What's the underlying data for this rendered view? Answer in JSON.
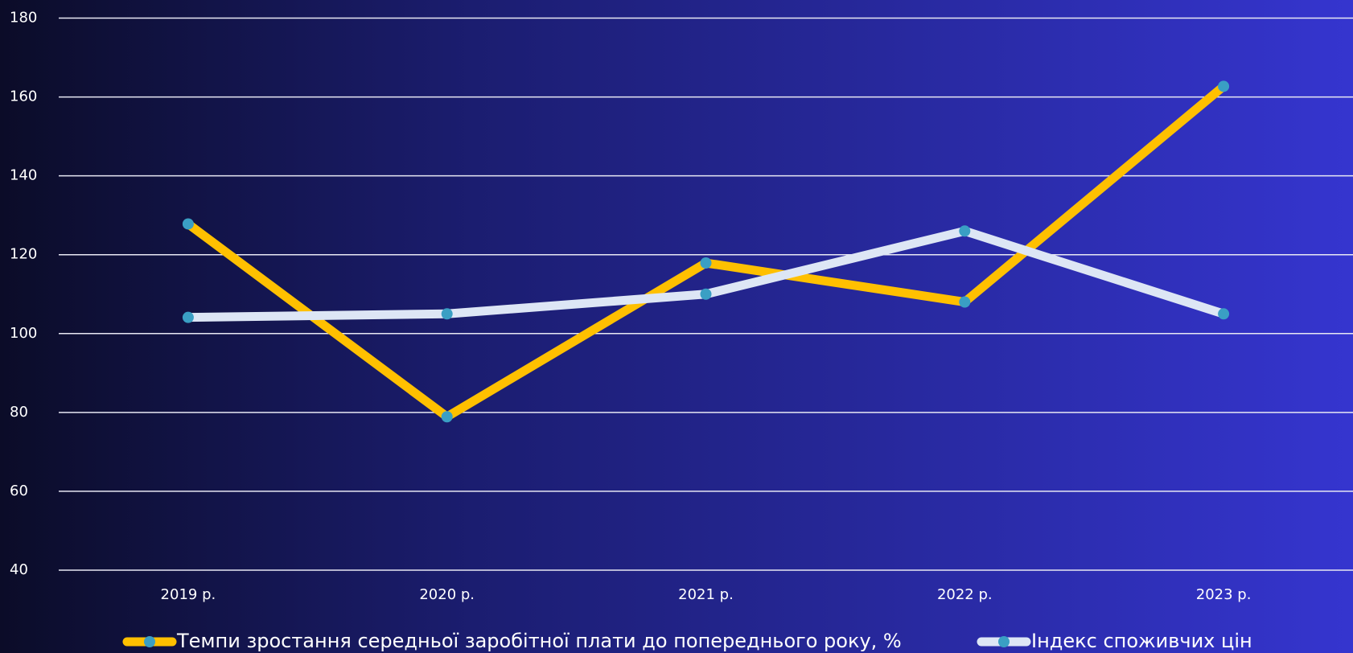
{
  "chart_data": {
    "type": "line",
    "categories": [
      "2019 р.",
      "2020 р.",
      "2021 р.",
      "2022 р.",
      "2023 р."
    ],
    "series": [
      {
        "name": "Темпи зростання середньої заробітної плати до попереднього року, %",
        "color": "#ffc000",
        "values": [
          127.8,
          78.9,
          117.9,
          108,
          162.7
        ]
      },
      {
        "name": "Індекс споживчих цін",
        "color": "#dde6f5",
        "values": [
          104.1,
          105,
          110,
          126,
          105
        ]
      }
    ],
    "marker_color": "#3a9fc4",
    "ylim": [
      40,
      180
    ],
    "yticks": [
      40,
      60,
      80,
      100,
      120,
      140,
      160,
      180
    ],
    "grid": true
  }
}
